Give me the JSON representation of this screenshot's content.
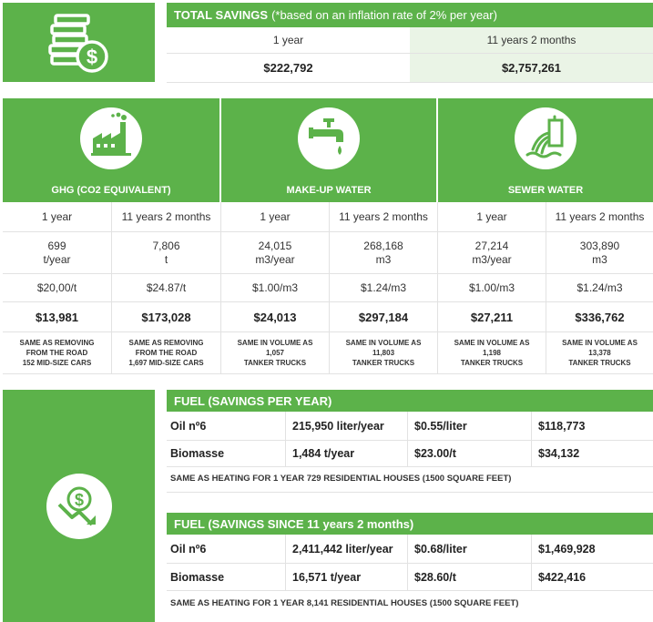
{
  "total_savings": {
    "label": "TOTAL SAVINGS",
    "note": "(*based on an inflation rate of 2% per year)",
    "periods": [
      "1 year",
      "11 years 2 months"
    ],
    "values": [
      "$222,792",
      "$2,757,261"
    ]
  },
  "categories": [
    {
      "title": "GHG (CO2 EQUIVALENT)",
      "icon": "factory-icon",
      "periods": [
        "1 year",
        "11 years 2 months"
      ],
      "volume": [
        [
          "699",
          "t/year"
        ],
        [
          "7,806",
          "t"
        ]
      ],
      "rate": [
        "$20,00/t",
        "$24.87/t"
      ],
      "savings": [
        "$13,981",
        "$173,028"
      ],
      "equivalence": [
        [
          "SAME AS REMOVING",
          "FROM THE ROAD",
          "152 MID-SIZE CARS"
        ],
        [
          "SAME AS REMOVING",
          "FROM THE ROAD",
          "1,697 MID-SIZE CARS"
        ]
      ]
    },
    {
      "title": "MAKE-UP WATER",
      "icon": "faucet-icon",
      "periods": [
        "1 year",
        "11 years 2 months"
      ],
      "volume": [
        [
          "24,015",
          "m3/year"
        ],
        [
          "268,168",
          "m3"
        ]
      ],
      "rate": [
        "$1.00/m3",
        "$1.24/m3"
      ],
      "savings": [
        "$24,013",
        "$297,184"
      ],
      "equivalence": [
        [
          "SAME IN VOLUME AS",
          "1,057",
          "TANKER TRUCKS"
        ],
        [
          "SAME IN VOLUME AS",
          "11,803",
          "TANKER TRUCKS"
        ]
      ]
    },
    {
      "title": "SEWER WATER",
      "icon": "sewer-outfall-icon",
      "periods": [
        "1 year",
        "11 years 2 months"
      ],
      "volume": [
        [
          "27,214",
          "m3/year"
        ],
        [
          "303,890",
          "m3"
        ]
      ],
      "rate": [
        "$1.00/m3",
        "$1.24/m3"
      ],
      "savings": [
        "$27,211",
        "$336,762"
      ],
      "equivalence": [
        [
          "SAME IN VOLUME AS",
          "1,198",
          "TANKER TRUCKS"
        ],
        [
          "SAME IN VOLUME AS",
          "13,378",
          "TANKER TRUCKS"
        ]
      ]
    }
  ],
  "fuel_per_year": {
    "title": "FUEL (SAVINGS PER YEAR)",
    "rows": [
      [
        "Oil nº6",
        "215,950 liter/year",
        "$0.55/liter",
        "$118,773"
      ],
      [
        "Biomasse",
        "1,484 t/year",
        "$23.00/t",
        "$34,132"
      ]
    ],
    "note": "SAME AS HEATING FOR 1 YEAR 729 RESIDENTIAL HOUSES (1500 SQUARE FEET)"
  },
  "fuel_since": {
    "title": "FUEL (SAVINGS SINCE 11 years 2 months)",
    "rows": [
      [
        "Oil nº6",
        "2,411,442 liter/year",
        "$0.68/liter",
        "$1,469,928"
      ],
      [
        "Biomasse",
        "16,571 t/year",
        "$28.60/t",
        "$422,416"
      ]
    ],
    "note": "SAME AS HEATING FOR 1 YEAR 8,141 RESIDENTIAL HOUSES (1500 SQUARE FEET)"
  },
  "colors": {
    "accent": "#5cb24a",
    "shade": "#eaf4e6"
  },
  "icons": [
    "coins-dollar-icon",
    "factory-icon",
    "faucet-icon",
    "sewer-outfall-icon",
    "dollar-down-arrow-icon"
  ]
}
